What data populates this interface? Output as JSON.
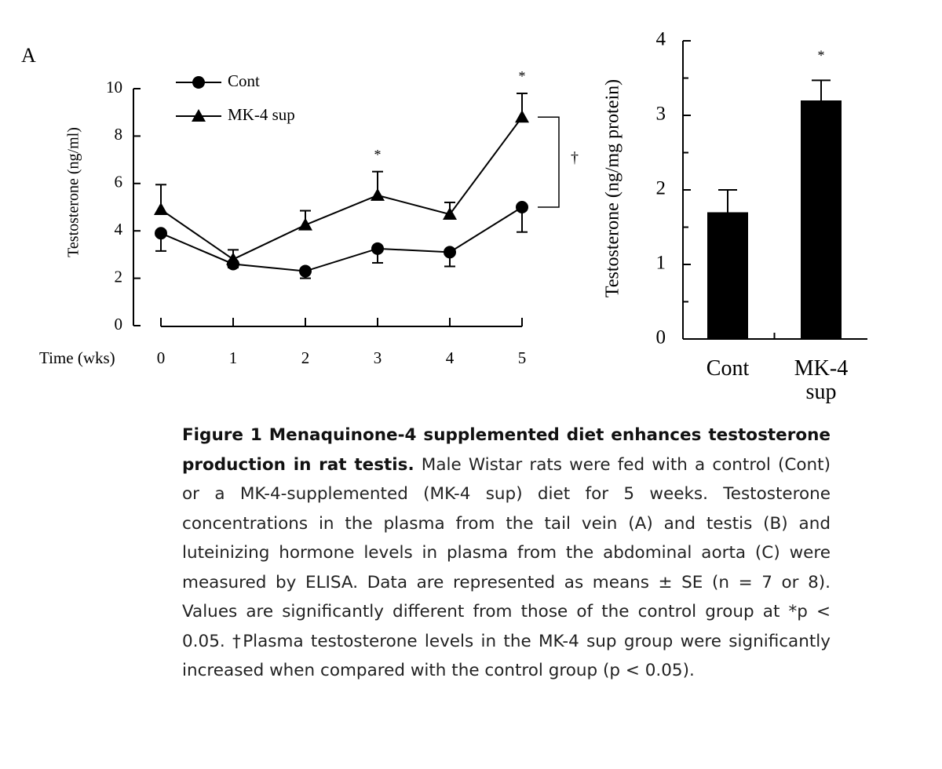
{
  "chart_data": [
    {
      "type": "line",
      "panel": "A",
      "x_label": "Time (wks)",
      "y_label": "Testosterone (ng/ml)",
      "x": [
        0,
        1,
        2,
        3,
        4,
        5
      ],
      "xlim": [
        0,
        5
      ],
      "xticks": [
        0,
        1,
        2,
        3,
        4,
        5
      ],
      "ylim": [
        0,
        10
      ],
      "yticks": [
        0,
        2,
        4,
        6,
        8,
        10
      ],
      "series": [
        {
          "name": "Cont",
          "color": "#000000",
          "marker": "circle",
          "error_direction": "down",
          "values": [
            3.9,
            2.6,
            2.3,
            3.25,
            3.1,
            5.0
          ],
          "errors": [
            0.75,
            0.15,
            0.3,
            0.6,
            0.6,
            1.05
          ]
        },
        {
          "name": "MK-4 sup",
          "color": "#000000",
          "marker": "triangle",
          "error_direction": "up",
          "values": [
            4.9,
            2.8,
            4.25,
            5.5,
            4.7,
            8.8
          ],
          "errors": [
            1.05,
            0.4,
            0.6,
            1.0,
            0.5,
            1.0
          ]
        }
      ],
      "annotations": [
        "*",
        "*",
        "†"
      ]
    },
    {
      "type": "bar",
      "y_label": "Testosterone (ng/mg protein)",
      "categories": [
        "Cont",
        "MK-4 sup"
      ],
      "values": [
        1.7,
        3.2
      ],
      "errors": [
        0.3,
        0.27
      ],
      "color": "#000000",
      "ylim": [
        0,
        4
      ],
      "yticks": [
        0,
        1,
        2,
        3,
        4
      ],
      "annotations": [
        "*"
      ]
    }
  ],
  "caption": {
    "title": "Figure 1 Menaquinone-4 supplemented diet enhances testosterone production in rat testis.",
    "text": "Male Wistar rats were fed with a control (Cont) or a MK-4-supplemented (MK-4 sup) diet for 5 weeks. Testosterone concentrations in the plasma from the tail vein (A) and testis (B) and luteinizing hormone levels in plasma from the abdominal aorta (C) were measured by ELISA. Data are represented as means ± SE (n = 7 or 8). Values are significantly different from those of the control group at *p < 0.05. †Plasma testosterone levels in the MK-4 sup group were significantly increased when compared with the control group (p < 0.05)."
  }
}
